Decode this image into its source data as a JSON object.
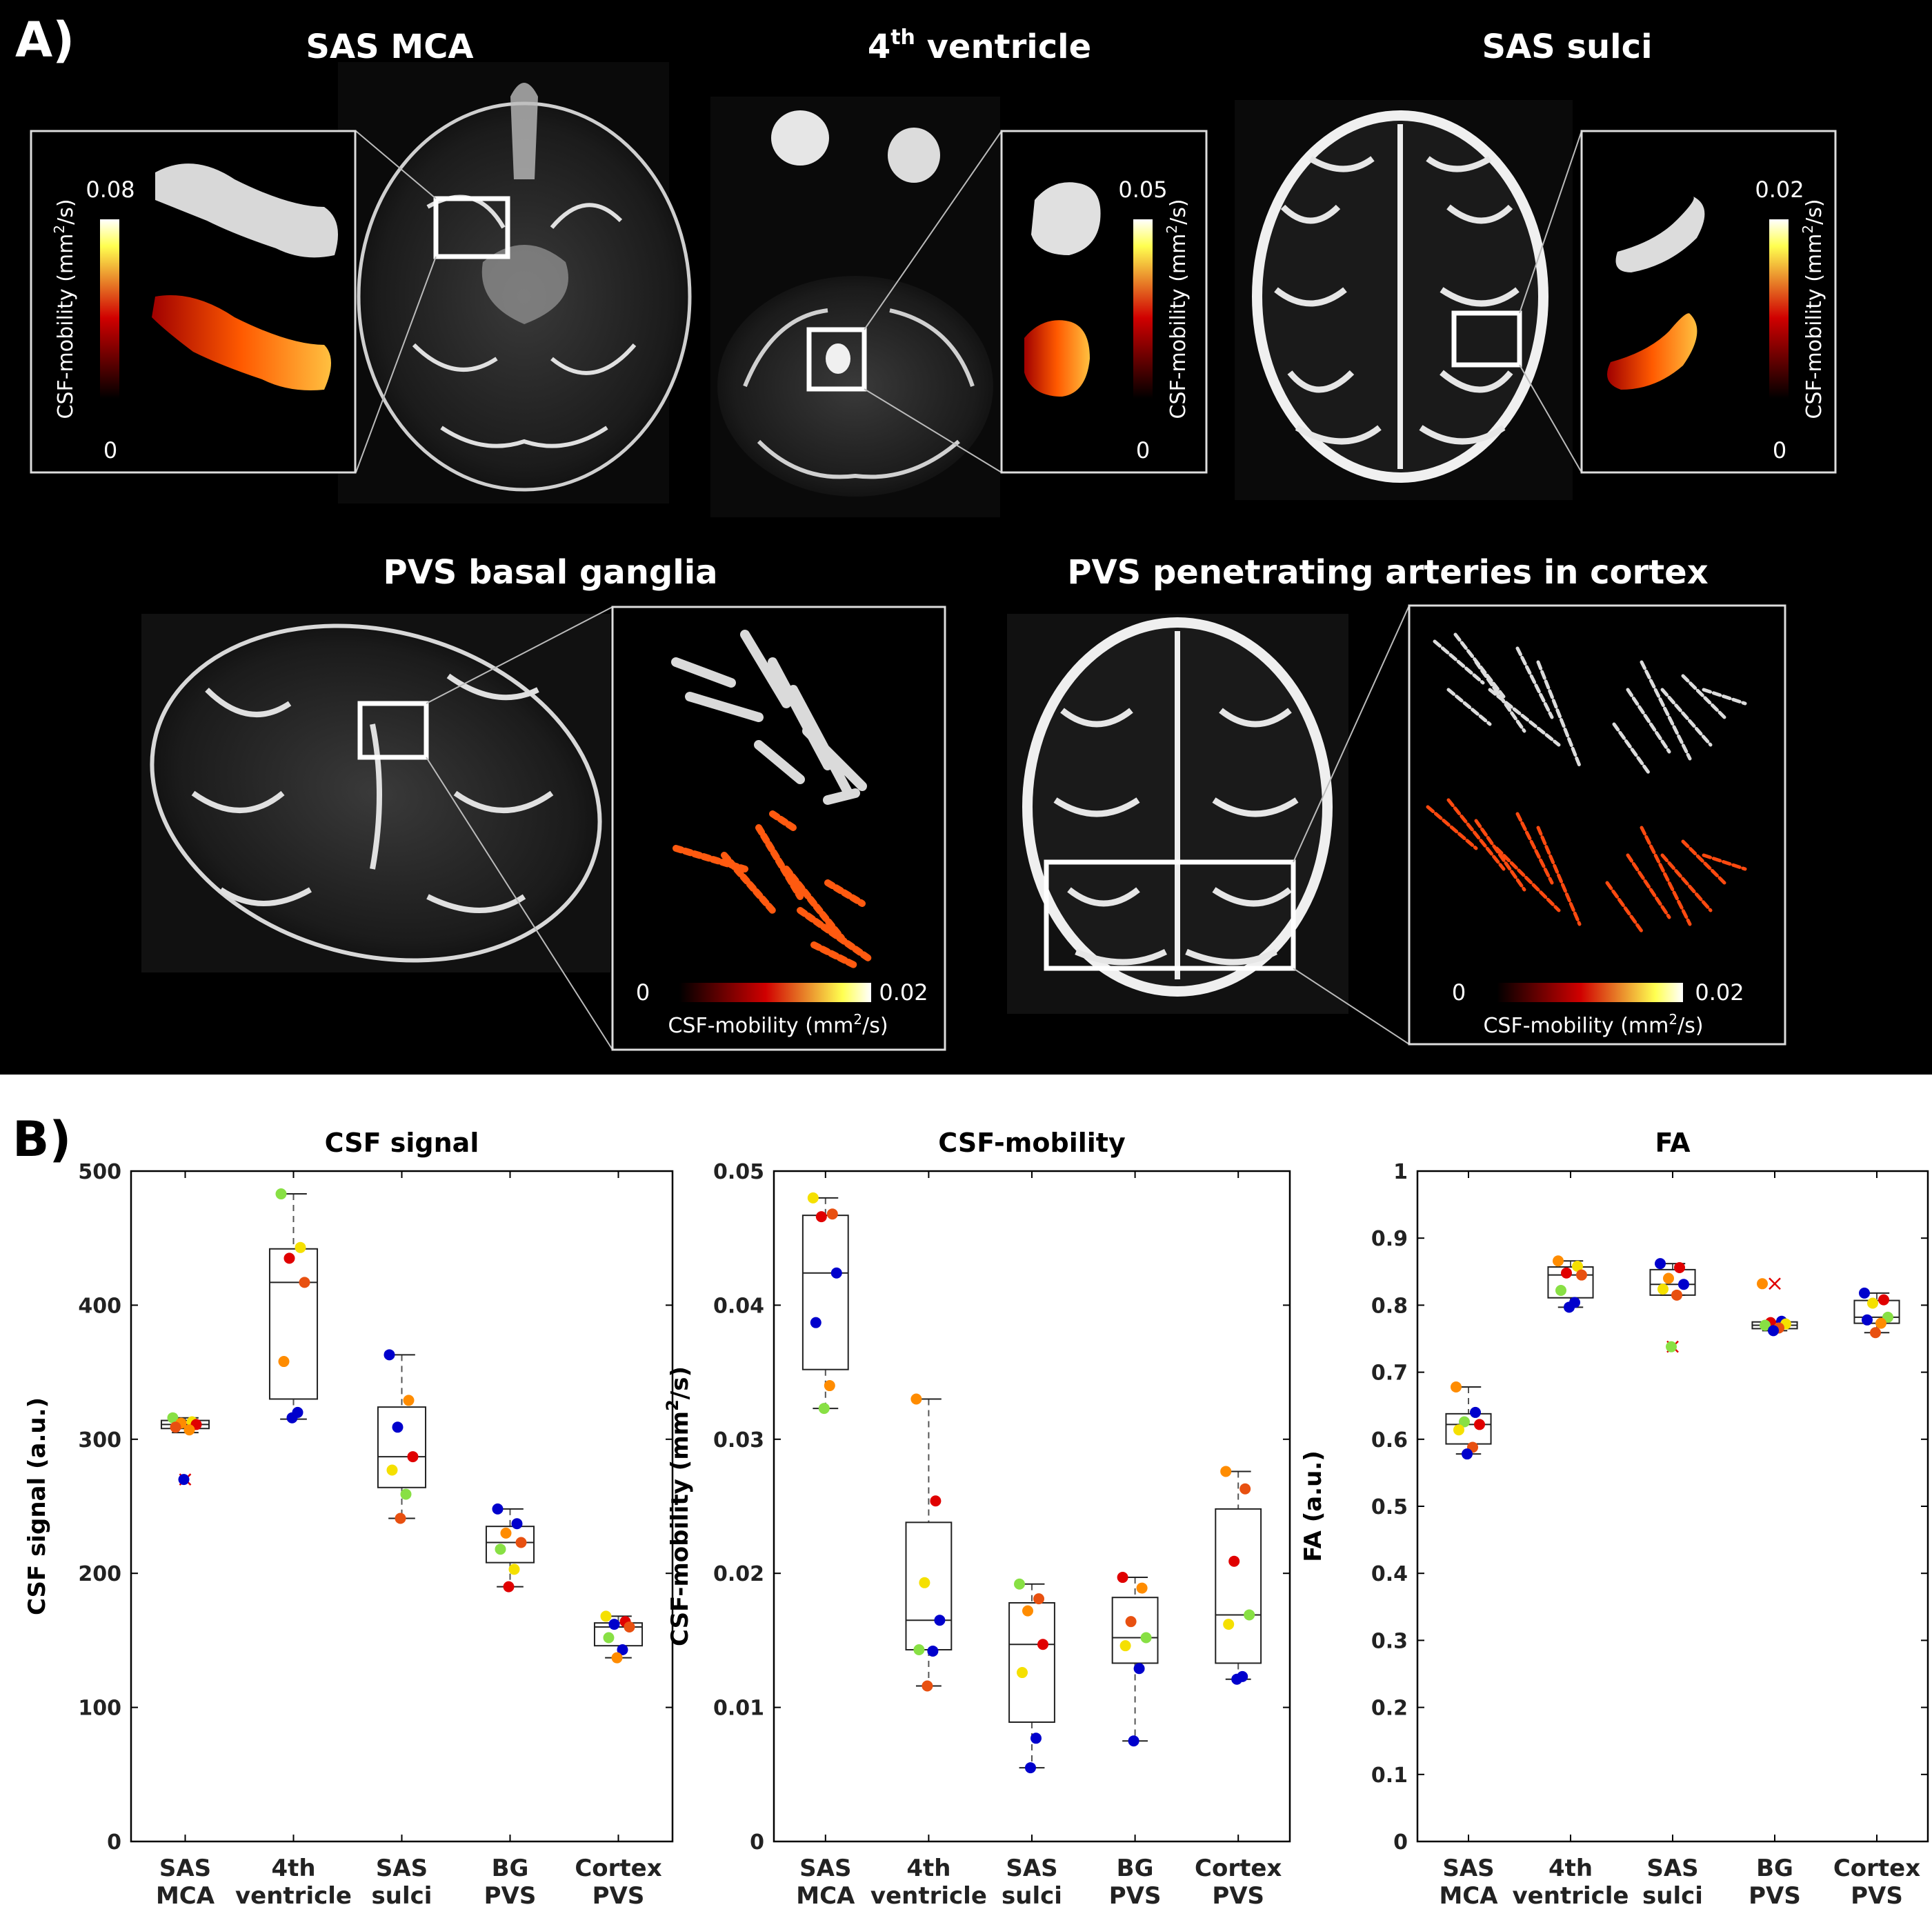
{
  "panel_a": {
    "label": "A)",
    "titles": {
      "sas_mca": "SAS MCA",
      "fourth_base": "4",
      "fourth_sup": "th",
      "fourth_rest": " ventricle",
      "sas_sulci": "SAS sulci",
      "pvs_bg": "PVS basal ganglia",
      "pvs_cortex": "PVS penetrating arteries in cortex"
    },
    "colorbars": {
      "sas_mca": {
        "max": "0.08",
        "min": "0"
      },
      "fourth": {
        "max": "0.05",
        "min": "0"
      },
      "sulci": {
        "max": "0.02",
        "min": "0"
      },
      "bg": {
        "max": "0.02",
        "min": "0"
      },
      "cortex": {
        "max": "0.02",
        "min": "0"
      },
      "label_pre": "CSF-mobility (mm",
      "label_sup": "2",
      "label_post": "/s)"
    }
  },
  "panel_b": {
    "label": "B)"
  },
  "colors": {
    "box": "#222222",
    "whisker": "#555555",
    "red": "#e00000",
    "orange": "#ff8c00",
    "yellow": "#f5e000",
    "green": "#88e044",
    "blue": "#0000cc",
    "orangered": "#e85010",
    "cb_low": "#000000",
    "cb_mid": "#d00000",
    "cb_high": "#ffff60",
    "cb_top": "#ffffff"
  },
  "chart_data": [
    {
      "type": "box",
      "title": "CSF signal",
      "ylabel": "CSF signal (a.u.)",
      "ylim": [
        0,
        500
      ],
      "yticks": [
        "0",
        "100",
        "200",
        "300",
        "400",
        "500"
      ],
      "categories": [
        [
          "SAS",
          "MCA"
        ],
        [
          "4th",
          "ventricle"
        ],
        [
          "SAS",
          "sulci"
        ],
        [
          "BG",
          "PVS"
        ],
        [
          "Cortex",
          "PVS"
        ]
      ],
      "boxes": [
        {
          "q1": 308,
          "median": 311,
          "q3": 314,
          "whisker_low": 305,
          "whisker_high": 316,
          "outliers": [
            270
          ]
        },
        {
          "q1": 330,
          "median": 417,
          "q3": 442,
          "whisker_low": 315,
          "whisker_high": 483,
          "outliers": []
        },
        {
          "q1": 264,
          "median": 287,
          "q3": 324,
          "whisker_low": 241,
          "whisker_high": 363,
          "outliers": []
        },
        {
          "q1": 208,
          "median": 223,
          "q3": 235,
          "whisker_low": 190,
          "whisker_high": 248,
          "outliers": []
        },
        {
          "q1": 146,
          "median": 160,
          "q3": 163,
          "whisker_low": 137,
          "whisker_high": 168,
          "outliers": []
        }
      ],
      "points": [
        [
          {
            "v": 316,
            "c": "green"
          },
          {
            "v": 313,
            "c": "yellow"
          },
          {
            "v": 312,
            "c": "orange"
          },
          {
            "v": 311,
            "c": "red"
          },
          {
            "v": 309,
            "c": "orangered"
          },
          {
            "v": 307,
            "c": "orange"
          },
          {
            "v": 270,
            "c": "blue"
          }
        ],
        [
          {
            "v": 483,
            "c": "green"
          },
          {
            "v": 443,
            "c": "yellow"
          },
          {
            "v": 435,
            "c": "red"
          },
          {
            "v": 417,
            "c": "orangered"
          },
          {
            "v": 358,
            "c": "orange"
          },
          {
            "v": 320,
            "c": "blue"
          },
          {
            "v": 316,
            "c": "blue"
          }
        ],
        [
          {
            "v": 363,
            "c": "blue"
          },
          {
            "v": 329,
            "c": "orange"
          },
          {
            "v": 309,
            "c": "blue"
          },
          {
            "v": 287,
            "c": "red"
          },
          {
            "v": 277,
            "c": "yellow"
          },
          {
            "v": 259,
            "c": "green"
          },
          {
            "v": 241,
            "c": "orangered"
          }
        ],
        [
          {
            "v": 248,
            "c": "blue"
          },
          {
            "v": 237,
            "c": "blue"
          },
          {
            "v": 230,
            "c": "orange"
          },
          {
            "v": 223,
            "c": "orangered"
          },
          {
            "v": 218,
            "c": "green"
          },
          {
            "v": 203,
            "c": "yellow"
          },
          {
            "v": 190,
            "c": "red"
          }
        ],
        [
          {
            "v": 168,
            "c": "yellow"
          },
          {
            "v": 164,
            "c": "red"
          },
          {
            "v": 162,
            "c": "blue"
          },
          {
            "v": 160,
            "c": "orangered"
          },
          {
            "v": 152,
            "c": "green"
          },
          {
            "v": 143,
            "c": "blue"
          },
          {
            "v": 137,
            "c": "orange"
          }
        ]
      ]
    },
    {
      "type": "box",
      "title": "CSF-mobility",
      "ylabel_pre": "CSF-mobility (mm",
      "ylabel_sup": "2",
      "ylabel_post": "/s)",
      "ylim": [
        0,
        0.05
      ],
      "yticks": [
        "0",
        "0.01",
        "0.02",
        "0.03",
        "0.04",
        "0.05"
      ],
      "categories": [
        [
          "SAS",
          "MCA"
        ],
        [
          "4th",
          "ventricle"
        ],
        [
          "SAS",
          "sulci"
        ],
        [
          "BG",
          "PVS"
        ],
        [
          "Cortex",
          "PVS"
        ]
      ],
      "boxes": [
        {
          "q1": 0.0352,
          "median": 0.0424,
          "q3": 0.0467,
          "whisker_low": 0.0323,
          "whisker_high": 0.048,
          "outliers": []
        },
        {
          "q1": 0.0143,
          "median": 0.0165,
          "q3": 0.0238,
          "whisker_low": 0.0116,
          "whisker_high": 0.033,
          "outliers": []
        },
        {
          "q1": 0.0089,
          "median": 0.0147,
          "q3": 0.0178,
          "whisker_low": 0.0055,
          "whisker_high": 0.0192,
          "outliers": []
        },
        {
          "q1": 0.0133,
          "median": 0.0152,
          "q3": 0.0182,
          "whisker_low": 0.0075,
          "whisker_high": 0.0197,
          "outliers": []
        },
        {
          "q1": 0.0133,
          "median": 0.0169,
          "q3": 0.0248,
          "whisker_low": 0.0121,
          "whisker_high": 0.0276,
          "outliers": []
        }
      ],
      "points": [
        [
          {
            "v": 0.048,
            "c": "yellow"
          },
          {
            "v": 0.0468,
            "c": "orangered"
          },
          {
            "v": 0.0466,
            "c": "red"
          },
          {
            "v": 0.0424,
            "c": "blue"
          },
          {
            "v": 0.0387,
            "c": "blue"
          },
          {
            "v": 0.034,
            "c": "orange"
          },
          {
            "v": 0.0323,
            "c": "green"
          }
        ],
        [
          {
            "v": 0.033,
            "c": "orange"
          },
          {
            "v": 0.0254,
            "c": "red"
          },
          {
            "v": 0.0193,
            "c": "yellow"
          },
          {
            "v": 0.0165,
            "c": "blue"
          },
          {
            "v": 0.0143,
            "c": "green"
          },
          {
            "v": 0.0142,
            "c": "blue"
          },
          {
            "v": 0.0116,
            "c": "orangered"
          }
        ],
        [
          {
            "v": 0.0192,
            "c": "green"
          },
          {
            "v": 0.0181,
            "c": "orangered"
          },
          {
            "v": 0.0172,
            "c": "orange"
          },
          {
            "v": 0.0147,
            "c": "red"
          },
          {
            "v": 0.0126,
            "c": "yellow"
          },
          {
            "v": 0.0077,
            "c": "blue"
          },
          {
            "v": 0.0055,
            "c": "blue"
          }
        ],
        [
          {
            "v": 0.0197,
            "c": "red"
          },
          {
            "v": 0.0189,
            "c": "orange"
          },
          {
            "v": 0.0164,
            "c": "orangered"
          },
          {
            "v": 0.0152,
            "c": "green"
          },
          {
            "v": 0.0146,
            "c": "yellow"
          },
          {
            "v": 0.0129,
            "c": "blue"
          },
          {
            "v": 0.0075,
            "c": "blue"
          }
        ],
        [
          {
            "v": 0.0276,
            "c": "orange"
          },
          {
            "v": 0.0263,
            "c": "orangered"
          },
          {
            "v": 0.0209,
            "c": "red"
          },
          {
            "v": 0.0169,
            "c": "green"
          },
          {
            "v": 0.0162,
            "c": "yellow"
          },
          {
            "v": 0.0123,
            "c": "blue"
          },
          {
            "v": 0.0121,
            "c": "blue"
          }
        ]
      ]
    },
    {
      "type": "box",
      "title": "FA",
      "ylabel": "FA (a.u.)",
      "ylim": [
        0,
        1
      ],
      "yticks": [
        "0",
        "0.1",
        "0.2",
        "0.3",
        "0.4",
        "0.5",
        "0.6",
        "0.7",
        "0.8",
        "0.9",
        "1"
      ],
      "categories": [
        [
          "SAS",
          "MCA"
        ],
        [
          "4th",
          "ventricle"
        ],
        [
          "SAS",
          "sulci"
        ],
        [
          "BG",
          "PVS"
        ],
        [
          "Cortex",
          "PVS"
        ]
      ],
      "boxes": [
        {
          "q1": 0.593,
          "median": 0.622,
          "q3": 0.638,
          "whisker_low": 0.578,
          "whisker_high": 0.678,
          "outliers": []
        },
        {
          "q1": 0.811,
          "median": 0.845,
          "q3": 0.857,
          "whisker_low": 0.797,
          "whisker_high": 0.866,
          "outliers": []
        },
        {
          "q1": 0.815,
          "median": 0.831,
          "q3": 0.853,
          "whisker_low": 0.815,
          "whisker_high": 0.862,
          "outliers": [
            0.738
          ]
        },
        {
          "q1": 0.765,
          "median": 0.77,
          "q3": 0.775,
          "whisker_low": 0.762,
          "whisker_high": 0.776,
          "outliers": [
            0.832
          ]
        },
        {
          "q1": 0.773,
          "median": 0.782,
          "q3": 0.807,
          "whisker_low": 0.759,
          "whisker_high": 0.818,
          "outliers": []
        }
      ],
      "points": [
        [
          {
            "v": 0.678,
            "c": "orange"
          },
          {
            "v": 0.64,
            "c": "blue"
          },
          {
            "v": 0.626,
            "c": "green"
          },
          {
            "v": 0.622,
            "c": "red"
          },
          {
            "v": 0.614,
            "c": "yellow"
          },
          {
            "v": 0.588,
            "c": "orangered"
          },
          {
            "v": 0.578,
            "c": "blue"
          }
        ],
        [
          {
            "v": 0.866,
            "c": "orange"
          },
          {
            "v": 0.858,
            "c": "yellow"
          },
          {
            "v": 0.848,
            "c": "red"
          },
          {
            "v": 0.845,
            "c": "orangered"
          },
          {
            "v": 0.822,
            "c": "green"
          },
          {
            "v": 0.804,
            "c": "blue"
          },
          {
            "v": 0.797,
            "c": "blue"
          }
        ],
        [
          {
            "v": 0.862,
            "c": "blue"
          },
          {
            "v": 0.856,
            "c": "red"
          },
          {
            "v": 0.84,
            "c": "orange"
          },
          {
            "v": 0.831,
            "c": "blue"
          },
          {
            "v": 0.824,
            "c": "yellow"
          },
          {
            "v": 0.815,
            "c": "orangered"
          },
          {
            "v": 0.738,
            "c": "green"
          }
        ],
        [
          {
            "v": 0.832,
            "c": "orange"
          },
          {
            "v": 0.776,
            "c": "blue"
          },
          {
            "v": 0.774,
            "c": "red"
          },
          {
            "v": 0.772,
            "c": "yellow"
          },
          {
            "v": 0.77,
            "c": "green"
          },
          {
            "v": 0.766,
            "c": "orangered"
          },
          {
            "v": 0.762,
            "c": "blue"
          }
        ],
        [
          {
            "v": 0.818,
            "c": "blue"
          },
          {
            "v": 0.808,
            "c": "red"
          },
          {
            "v": 0.803,
            "c": "yellow"
          },
          {
            "v": 0.782,
            "c": "green"
          },
          {
            "v": 0.778,
            "c": "blue"
          },
          {
            "v": 0.773,
            "c": "orange"
          },
          {
            "v": 0.759,
            "c": "orangered"
          }
        ]
      ]
    }
  ]
}
